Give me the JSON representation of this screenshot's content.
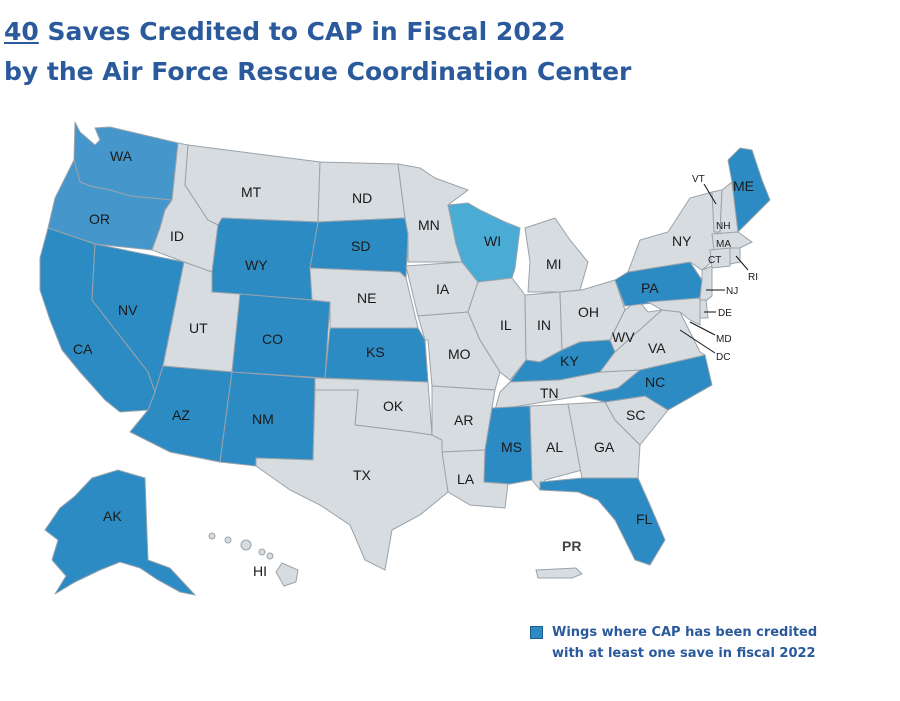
{
  "title": {
    "count": "40",
    "line1_rest": " Saves Credited to CAP in Fiscal 2022",
    "line2": "by the Air Force Rescue Coordination Center"
  },
  "colors": {
    "credited": "#2d8bc4",
    "credited_light": "#4596cb",
    "wisconsin": "#4aabd5",
    "not_credited": "#d6dce0",
    "border": "#9aa3aa",
    "title": "#2a5a9c"
  },
  "states": {
    "WA": {
      "label": "WA",
      "status": "credited_light"
    },
    "OR": {
      "label": "OR",
      "status": "credited_light"
    },
    "CA": {
      "label": "CA",
      "status": "credited"
    },
    "NV": {
      "label": "NV",
      "status": "credited"
    },
    "ID": {
      "label": "ID",
      "status": "not_credited"
    },
    "MT": {
      "label": "MT",
      "status": "not_credited"
    },
    "WY": {
      "label": "WY",
      "status": "credited"
    },
    "UT": {
      "label": "UT",
      "status": "not_credited"
    },
    "CO": {
      "label": "CO",
      "status": "credited"
    },
    "AZ": {
      "label": "AZ",
      "status": "credited"
    },
    "NM": {
      "label": "NM",
      "status": "credited"
    },
    "ND": {
      "label": "ND",
      "status": "not_credited"
    },
    "SD": {
      "label": "SD",
      "status": "credited"
    },
    "NE": {
      "label": "NE",
      "status": "not_credited"
    },
    "KS": {
      "label": "KS",
      "status": "credited"
    },
    "OK": {
      "label": "OK",
      "status": "not_credited"
    },
    "TX": {
      "label": "TX",
      "status": "not_credited"
    },
    "MN": {
      "label": "MN",
      "status": "not_credited"
    },
    "IA": {
      "label": "IA",
      "status": "not_credited"
    },
    "MO": {
      "label": "MO",
      "status": "not_credited"
    },
    "AR": {
      "label": "AR",
      "status": "not_credited"
    },
    "LA": {
      "label": "LA",
      "status": "not_credited"
    },
    "WI": {
      "label": "WI",
      "status": "wisconsin"
    },
    "IL": {
      "label": "IL",
      "status": "not_credited"
    },
    "MI": {
      "label": "MI",
      "status": "not_credited"
    },
    "IN": {
      "label": "IN",
      "status": "not_credited"
    },
    "OH": {
      "label": "OH",
      "status": "not_credited"
    },
    "KY": {
      "label": "KY",
      "status": "credited"
    },
    "TN": {
      "label": "TN",
      "status": "not_credited"
    },
    "MS": {
      "label": "MS",
      "status": "credited"
    },
    "AL": {
      "label": "AL",
      "status": "not_credited"
    },
    "GA": {
      "label": "GA",
      "status": "not_credited"
    },
    "FL": {
      "label": "FL",
      "status": "credited"
    },
    "SC": {
      "label": "SC",
      "status": "not_credited"
    },
    "NC": {
      "label": "NC",
      "status": "credited"
    },
    "VA": {
      "label": "VA",
      "status": "not_credited"
    },
    "WV": {
      "label": "WV",
      "status": "not_credited"
    },
    "PA": {
      "label": "PA",
      "status": "credited"
    },
    "NY": {
      "label": "NY",
      "status": "not_credited"
    },
    "ME": {
      "label": "ME",
      "status": "credited"
    },
    "VT": {
      "label": "VT",
      "status": "not_credited"
    },
    "NH": {
      "label": "NH",
      "status": "not_credited"
    },
    "MA": {
      "label": "MA",
      "status": "not_credited"
    },
    "CT": {
      "label": "CT",
      "status": "not_credited"
    },
    "RI": {
      "label": "RI",
      "status": "not_credited"
    },
    "NJ": {
      "label": "NJ",
      "status": "not_credited"
    },
    "DE": {
      "label": "DE",
      "status": "not_credited"
    },
    "MD": {
      "label": "MD",
      "status": "not_credited"
    },
    "DC": {
      "label": "DC",
      "status": "not_credited"
    },
    "AK": {
      "label": "AK",
      "status": "credited"
    },
    "HI": {
      "label": "HI",
      "status": "not_credited"
    },
    "PR": {
      "label": "PR",
      "status": "not_credited"
    }
  },
  "legend": {
    "text": "Wings where CAP has been credited with at least one save in fiscal 2022"
  }
}
